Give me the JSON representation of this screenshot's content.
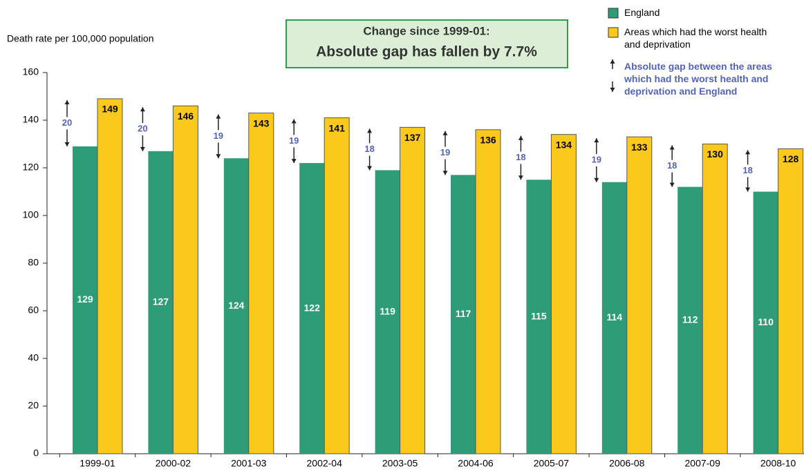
{
  "chart_data": {
    "type": "bar",
    "y_label": "Death rate per 100,000 population",
    "annotation": {
      "title": "Change since 1999-01:",
      "text": "Absolute gap has fallen by 7.7%"
    },
    "categories": [
      "1999-01",
      "2000-02",
      "2001-03",
      "2002-04",
      "2003-05",
      "2004-06",
      "2005-07",
      "2006-08",
      "2007-09",
      "2008-10"
    ],
    "series": [
      {
        "name": "England",
        "color": "#2e9c77",
        "values": [
          129,
          127,
          124,
          122,
          119,
          117,
          115,
          114,
          112,
          110
        ]
      },
      {
        "name": "Areas which had the worst health and deprivation",
        "color": "#fbc81c",
        "values": [
          149,
          146,
          143,
          141,
          137,
          136,
          134,
          133,
          130,
          128
        ]
      }
    ],
    "gap": {
      "name": "Absolute gap between the areas which had the worst health and deprivation and England",
      "color": "#5563b5",
      "values": [
        20,
        20,
        19,
        19,
        18,
        19,
        18,
        19,
        18,
        18
      ]
    },
    "ylim": [
      0,
      160
    ],
    "yticks": [
      0,
      20,
      40,
      60,
      80,
      100,
      120,
      140,
      160
    ],
    "legend": "top-right"
  }
}
